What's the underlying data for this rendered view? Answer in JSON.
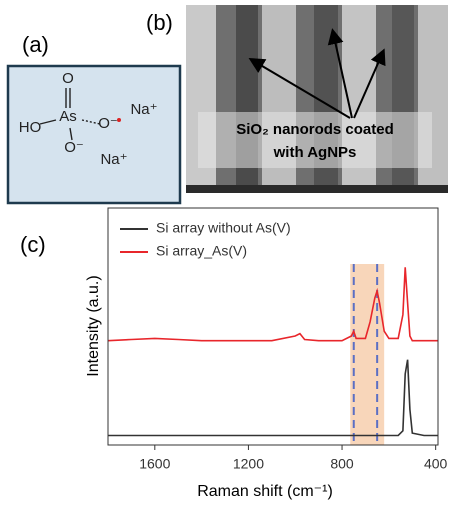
{
  "panel_a": {
    "label": "(a)",
    "atoms": [
      "O",
      "HO",
      "As",
      "O⁻",
      "O⁻",
      "Na⁺",
      "Na⁺"
    ]
  },
  "panel_b": {
    "label": "(b)",
    "annotation": [
      "SiO₂ nanorods coated",
      "with AgNPs"
    ]
  },
  "chart_data": {
    "type": "line",
    "label": "(c)",
    "x_label": "Raman shift (cm⁻¹)",
    "y_label": "Intensity (a.u.)",
    "x": [
      1800,
      1700,
      1600,
      1500,
      1400,
      1300,
      1200,
      1100,
      1000,
      980,
      960,
      900,
      800,
      760,
      750,
      740,
      700,
      680,
      660,
      650,
      640,
      620,
      600,
      560,
      540,
      530,
      520,
      510,
      500,
      450,
      390
    ],
    "series": [
      {
        "name": "Si array without As(V)",
        "color": "#333333",
        "values": [
          4,
          4,
          4,
          4,
          4,
          4,
          4,
          4,
          4,
          4,
          4,
          4,
          4,
          4,
          4,
          4,
          4,
          4,
          4,
          4,
          4,
          4,
          4,
          4,
          6,
          30,
          36,
          15,
          5,
          4,
          4
        ]
      },
      {
        "name": "Si array_As(V)",
        "color": "#e8262b",
        "values": [
          44,
          44.5,
          45,
          44.5,
          44,
          44,
          44,
          44,
          46,
          47,
          44.5,
          44,
          44,
          46,
          48,
          45,
          45,
          52,
          62,
          65,
          60,
          48,
          45,
          45,
          55,
          75,
          60,
          46,
          44,
          44,
          44
        ]
      }
    ],
    "xlim": [
      1800,
      390
    ],
    "ylim": [
      0,
      100
    ],
    "xticks": [
      1600,
      1200,
      800,
      400
    ],
    "highlight": [
      765,
      620
    ],
    "highlight_color": "#f7cfae",
    "dashed_lines": [
      750,
      650
    ],
    "dashed_color": "#5b6fc4",
    "legend": "upper-left"
  }
}
